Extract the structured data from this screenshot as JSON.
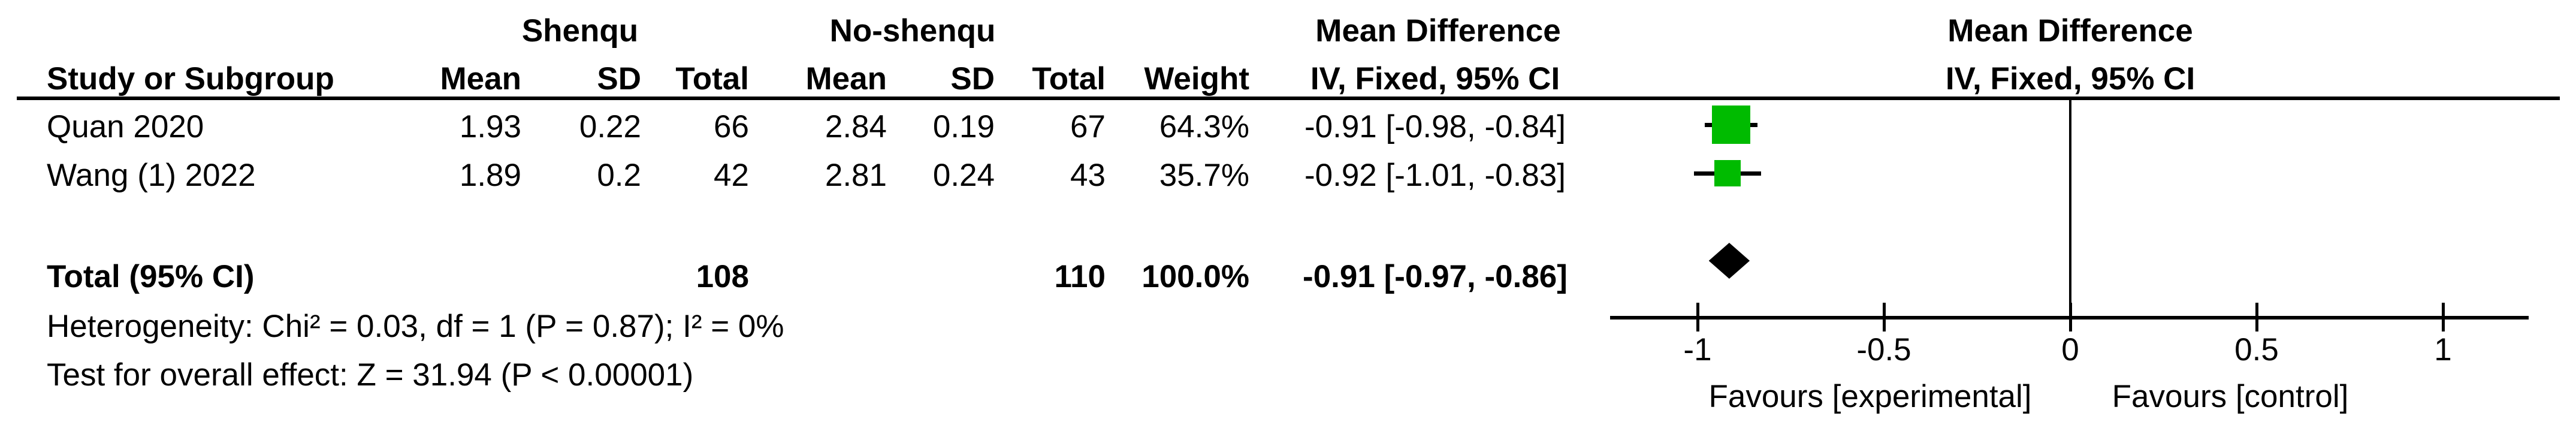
{
  "table": {
    "group1_header": "Shenqu",
    "group2_header": "No-shenqu",
    "md_header_left": "Mean Difference",
    "md_subheader_left": "IV, Fixed, 95% CI",
    "md_header_right": "Mean Difference",
    "md_subheader_right": "IV, Fixed, 95% CI",
    "columns": {
      "study": "Study or Subgroup",
      "mean": "Mean",
      "sd": "SD",
      "total": "Total",
      "weight": "Weight"
    },
    "rows": [
      {
        "study": "Quan 2020",
        "mean1": "1.93",
        "sd1": "0.22",
        "total1": "66",
        "mean2": "2.84",
        "sd2": "0.19",
        "total2": "67",
        "weight": "64.3%",
        "ci": "-0.91 [-0.98, -0.84]"
      },
      {
        "study": "Wang (1) 2022",
        "mean1": "1.89",
        "sd1": "0.2",
        "total1": "42",
        "mean2": "2.81",
        "sd2": "0.24",
        "total2": "43",
        "weight": "35.7%",
        "ci": "-0.92 [-1.01, -0.83]"
      }
    ],
    "total_row": {
      "label": "Total (95% CI)",
      "total1": "108",
      "total2": "110",
      "weight": "100.0%",
      "ci": "-0.91 [-0.97, -0.86]"
    },
    "footnotes": {
      "heterogeneity": "Heterogeneity: Chi² = 0.03, df = 1 (P = 0.87); I² = 0%",
      "overall_effect": "Test for overall effect: Z = 31.94 (P < 0.00001)"
    }
  },
  "chart_data": {
    "type": "forest",
    "effect_measure": "Mean Difference (IV, Fixed, 95% CI)",
    "studies": [
      {
        "name": "Quan 2020",
        "md": -0.91,
        "ci_low": -0.98,
        "ci_high": -0.84,
        "weight_pct": 64.3
      },
      {
        "name": "Wang (1) 2022",
        "md": -0.92,
        "ci_low": -1.01,
        "ci_high": -0.83,
        "weight_pct": 35.7
      }
    ],
    "total": {
      "md": -0.91,
      "ci_low": -0.97,
      "ci_high": -0.86
    },
    "axis": {
      "ticks": [
        -1,
        -0.5,
        0,
        0.5,
        1
      ],
      "tick_labels": [
        "-1",
        "-0.5",
        "0",
        "0.5",
        "1"
      ],
      "xmin": -1.23,
      "xmax": 1.23
    },
    "favours_left": "Favours [experimental]",
    "favours_right": "Favours [control]",
    "marker_color": "#00BB00",
    "line_color": "#000000",
    "diamond_color": "#000000"
  }
}
